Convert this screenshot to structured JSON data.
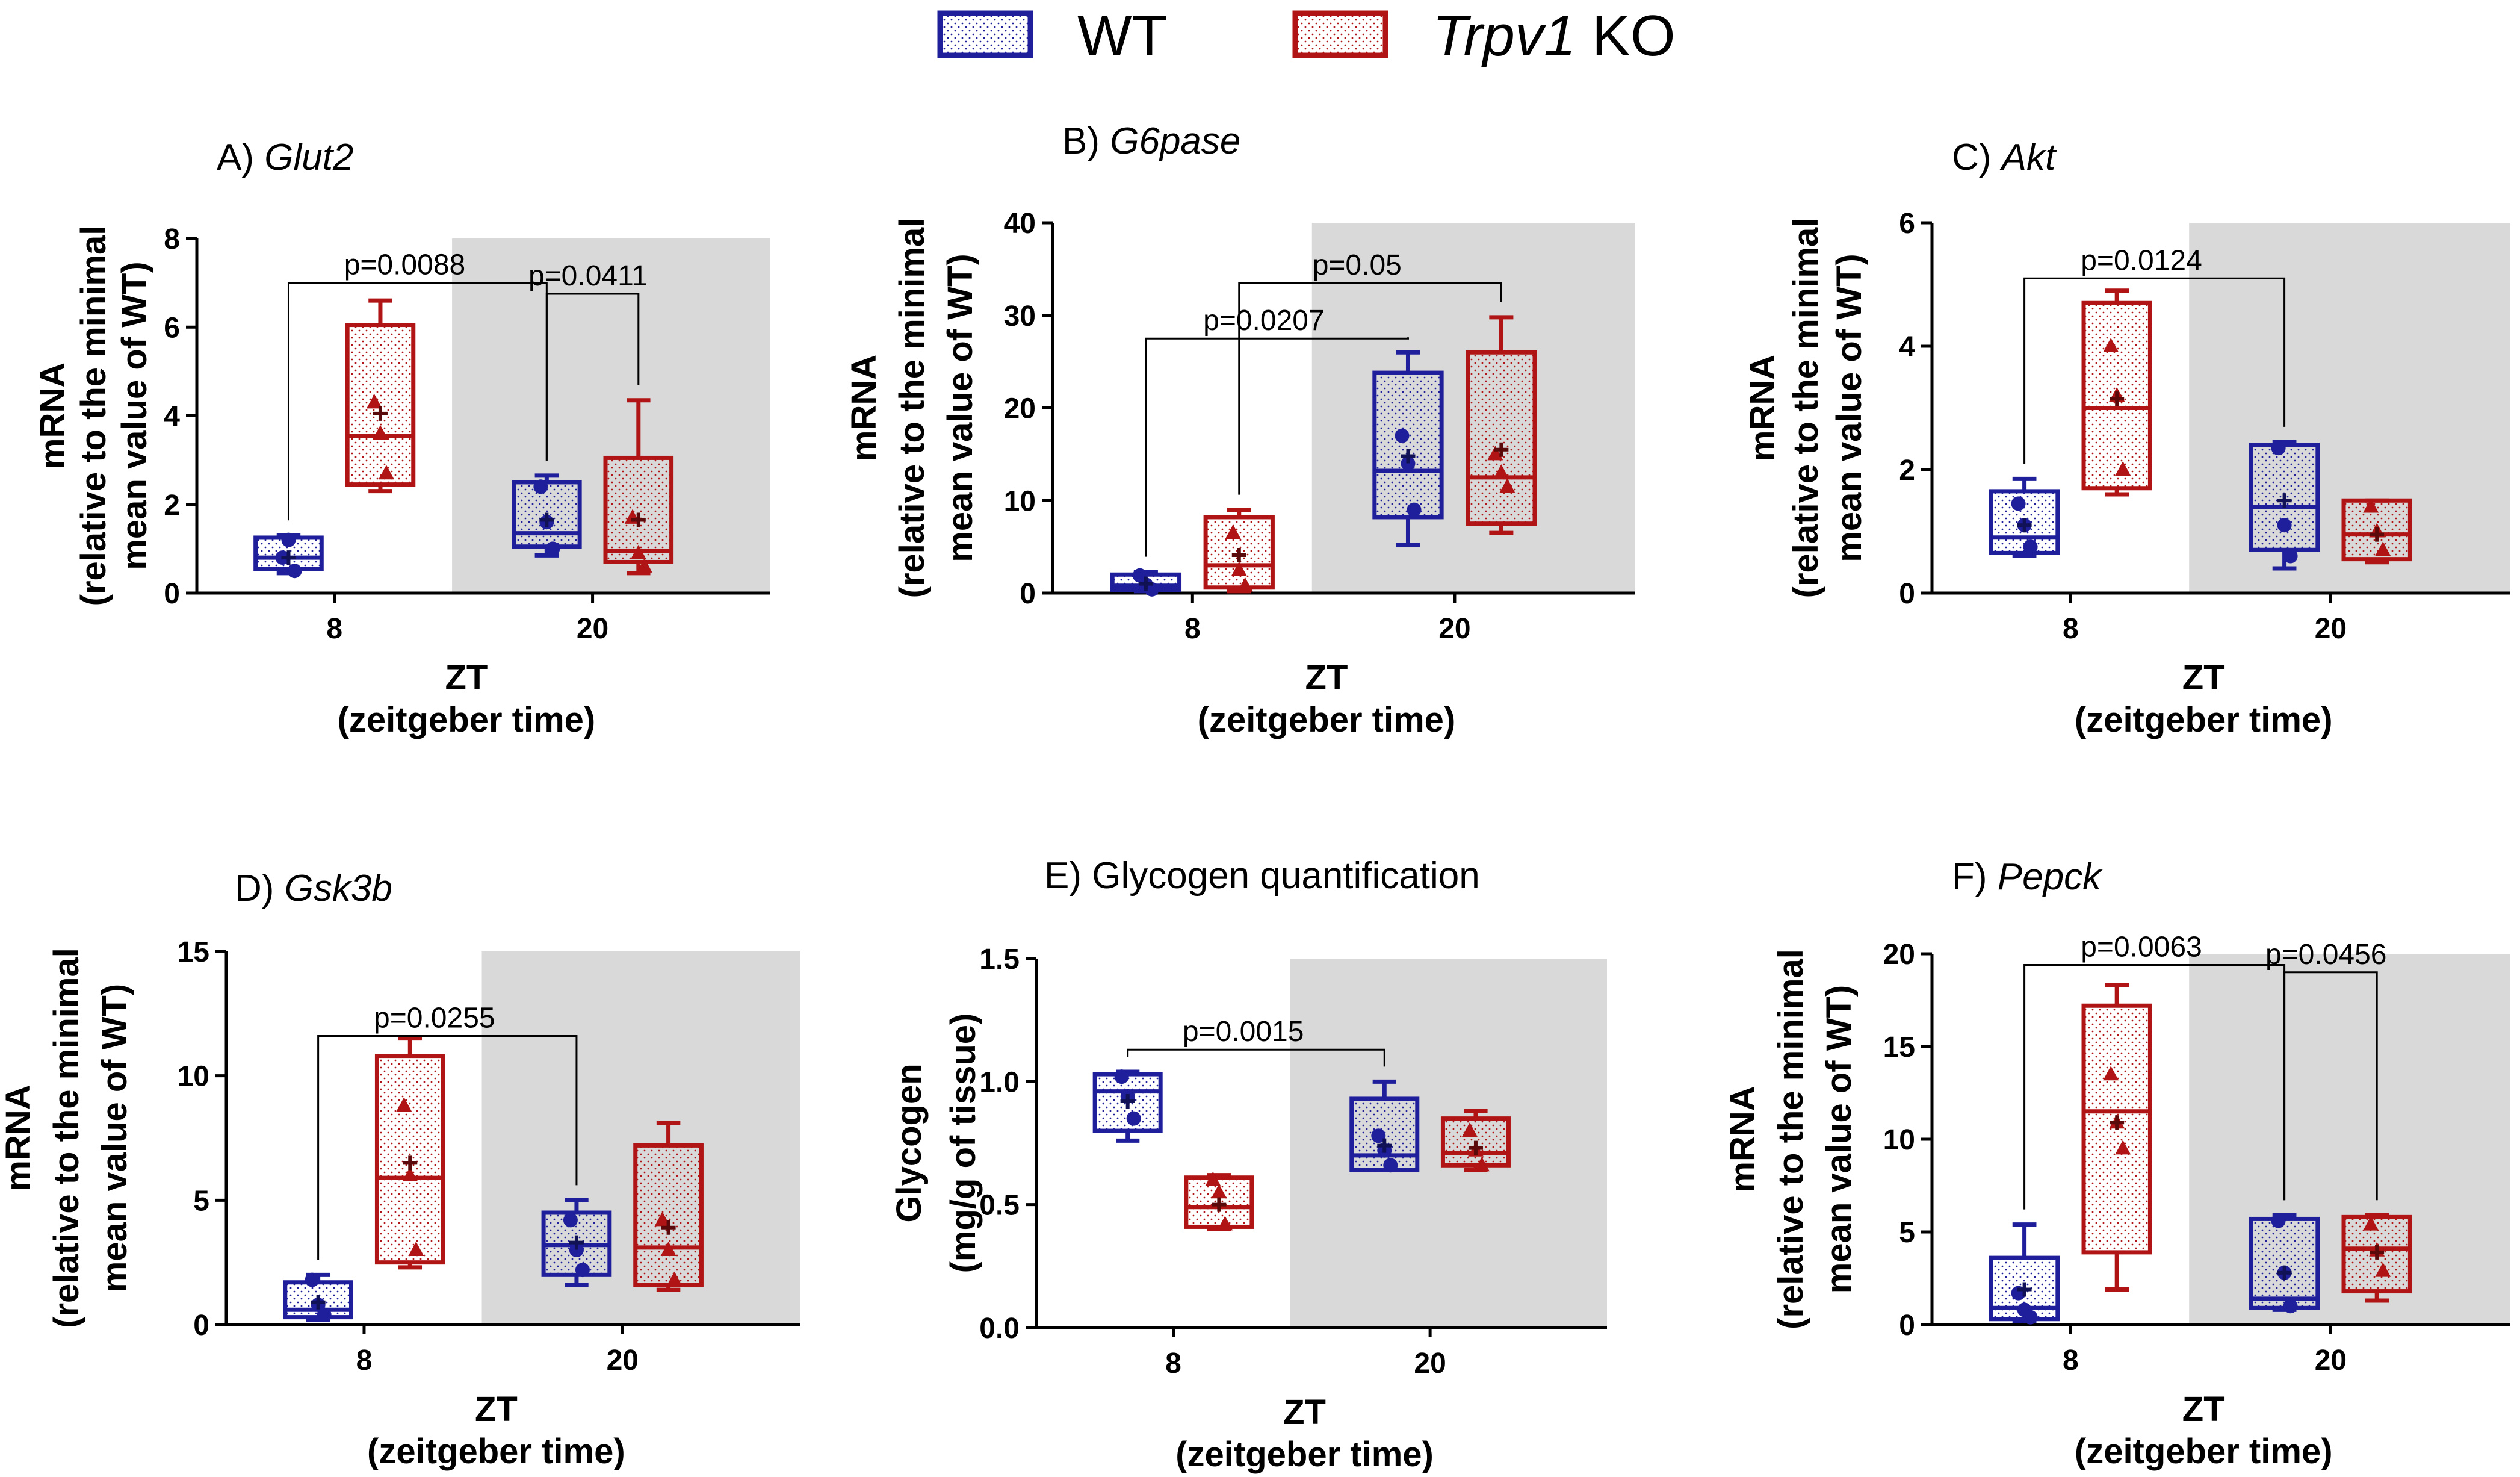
{
  "legend": {
    "wt": {
      "label": "WT",
      "color": "#1f1f9c"
    },
    "ko": {
      "gene": "Trpv1",
      "suffix": " KO",
      "color": "#b01414"
    }
  },
  "chart_data": [
    {
      "id": "A",
      "type": "box",
      "title_prefix": "A) ",
      "title_italic": "Glut2",
      "title_suffix": "",
      "ylabel": [
        "mRNA",
        "(relative to the minimal",
        "mean value of WT)"
      ],
      "xlabel": [
        "ZT",
        "(zeitgeber time)"
      ],
      "ylim": [
        0,
        8
      ],
      "yticks": [
        "0",
        "2",
        "4",
        "6",
        "8"
      ],
      "categories": [
        "8",
        "20"
      ],
      "shaded_category": "20",
      "series": [
        {
          "name": "WT",
          "boxes": [
            {
              "category": "8",
              "min": 0.45,
              "q1": 0.55,
              "median": 0.8,
              "q3": 1.25,
              "max": 1.3,
              "mean": 0.8,
              "points": [
                0.8,
                1.2,
                0.5
              ]
            },
            {
              "category": "20",
              "min": 0.85,
              "q1": 1.05,
              "median": 1.35,
              "q3": 2.5,
              "max": 2.65,
              "mean": 1.65,
              "points": [
                2.4,
                1.6,
                1.0
              ]
            }
          ]
        },
        {
          "name": "Trpv1 KO",
          "boxes": [
            {
              "category": "8",
              "min": 2.3,
              "q1": 2.45,
              "median": 3.55,
              "q3": 6.05,
              "max": 6.6,
              "mean": 4.05,
              "points": [
                4.3,
                3.6,
                2.7
              ]
            },
            {
              "category": "20",
              "min": 0.45,
              "q1": 0.7,
              "median": 0.95,
              "q3": 3.05,
              "max": 4.35,
              "mean": 1.65,
              "points": [
                1.7,
                0.9,
                0.6
              ]
            }
          ]
        }
      ],
      "annotations": [
        {
          "text": "p=0.0088",
          "from": [
            0,
            0
          ],
          "to": [
            1,
            0
          ],
          "level": 7.0
        },
        {
          "text": "p=0.0411",
          "from": [
            1,
            0
          ],
          "to": [
            1,
            1
          ],
          "level": 6.75
        }
      ]
    },
    {
      "id": "B",
      "type": "box",
      "title_prefix": "B) ",
      "title_italic": "G6pase",
      "title_suffix": "",
      "ylabel": [
        "mRNA",
        "(relative to the minimal",
        "mean value of WT)"
      ],
      "xlabel": [
        "ZT",
        "(zeitgeber time)"
      ],
      "ylim": [
        0,
        40
      ],
      "yticks": [
        "0",
        "10",
        "20",
        "30",
        "40"
      ],
      "categories": [
        "8",
        "20"
      ],
      "shaded_category": "20",
      "series": [
        {
          "name": "WT",
          "boxes": [
            {
              "category": "8",
              "min": 0.2,
              "q1": 0.3,
              "median": 0.8,
              "q3": 2.0,
              "max": 2.3,
              "mean": 1.0,
              "points": [
                1.9,
                0.9,
                0.4
              ]
            },
            {
              "category": "20",
              "min": 5.2,
              "q1": 8.2,
              "median": 13.2,
              "q3": 23.8,
              "max": 26.0,
              "mean": 14.8,
              "points": [
                17.0,
                14.0,
                9.0
              ]
            }
          ]
        },
        {
          "name": "Trpv1 KO",
          "boxes": [
            {
              "category": "8",
              "min": 0.2,
              "q1": 0.6,
              "median": 3.0,
              "q3": 8.2,
              "max": 9.0,
              "mean": 4.1,
              "points": [
                6.5,
                2.5,
                0.8
              ]
            },
            {
              "category": "20",
              "min": 6.5,
              "q1": 7.5,
              "median": 12.5,
              "q3": 26.0,
              "max": 29.8,
              "mean": 15.5,
              "points": [
                15.0,
                13.0,
                11.5
              ]
            }
          ]
        }
      ],
      "annotations": [
        {
          "text": "p=0.0207",
          "from": [
            0,
            0
          ],
          "to": [
            1,
            0
          ],
          "level": 27.5
        },
        {
          "text": "p=0.05",
          "from": [
            0,
            1
          ],
          "to": [
            1,
            1
          ],
          "level": 33.5
        }
      ]
    },
    {
      "id": "C",
      "type": "box",
      "title_prefix": "C) ",
      "title_italic": "Akt",
      "title_suffix": "",
      "ylabel": [
        "mRNA",
        "(relative to the minimal",
        "mean value of WT)"
      ],
      "xlabel": [
        "ZT",
        "(zeitgeber time)"
      ],
      "ylim": [
        0,
        6
      ],
      "yticks": [
        "0",
        "2",
        "4",
        "6"
      ],
      "categories": [
        "8",
        "20"
      ],
      "shaded_category": "20",
      "series": [
        {
          "name": "WT",
          "boxes": [
            {
              "category": "8",
              "min": 0.6,
              "q1": 0.65,
              "median": 0.9,
              "q3": 1.65,
              "max": 1.85,
              "mean": 1.1,
              "points": [
                1.45,
                1.1,
                0.75
              ]
            },
            {
              "category": "20",
              "min": 0.4,
              "q1": 0.7,
              "median": 1.4,
              "q3": 2.4,
              "max": 2.45,
              "mean": 1.5,
              "points": [
                2.35,
                1.1,
                0.6
              ]
            }
          ]
        },
        {
          "name": "Trpv1 KO",
          "boxes": [
            {
              "category": "8",
              "min": 1.6,
              "q1": 1.7,
              "median": 3.0,
              "q3": 4.7,
              "max": 4.9,
              "mean": 3.15,
              "points": [
                4.0,
                3.2,
                2.0
              ]
            },
            {
              "category": "20",
              "min": 0.5,
              "q1": 0.55,
              "median": 0.95,
              "q3": 1.5,
              "max": 1.5,
              "mean": 0.95,
              "points": [
                1.4,
                1.0,
                0.7
              ]
            }
          ]
        }
      ],
      "annotations": [
        {
          "text": "p=0.0124",
          "from": [
            0,
            0
          ],
          "to": [
            1,
            0
          ],
          "level": 5.1
        }
      ]
    },
    {
      "id": "D",
      "type": "box",
      "title_prefix": "D) ",
      "title_italic": "Gsk3b",
      "title_suffix": "",
      "ylabel": [
        "mRNA",
        "(relative to the minimal",
        "mean value of WT)"
      ],
      "xlabel": [
        "ZT",
        "(zeitgeber time)"
      ],
      "ylim": [
        0,
        15
      ],
      "yticks": [
        "0",
        "5",
        "10",
        "15"
      ],
      "categories": [
        "8",
        "20"
      ],
      "shaded_category": "20",
      "series": [
        {
          "name": "WT",
          "boxes": [
            {
              "category": "8",
              "min": 0.2,
              "q1": 0.3,
              "median": 0.6,
              "q3": 1.7,
              "max": 2.0,
              "mean": 0.9,
              "points": [
                1.8,
                0.8,
                0.4
              ]
            },
            {
              "category": "20",
              "min": 1.6,
              "q1": 2.0,
              "median": 3.2,
              "q3": 4.5,
              "max": 5.0,
              "mean": 3.3,
              "points": [
                4.2,
                3.0,
                2.2
              ]
            }
          ]
        },
        {
          "name": "Trpv1 KO",
          "boxes": [
            {
              "category": "8",
              "min": 2.3,
              "q1": 2.5,
              "median": 5.9,
              "q3": 10.8,
              "max": 11.5,
              "mean": 6.5,
              "points": [
                8.8,
                6.0,
                3.0
              ]
            },
            {
              "category": "20",
              "min": 1.4,
              "q1": 1.6,
              "median": 3.1,
              "q3": 7.2,
              "max": 8.1,
              "mean": 3.9,
              "points": [
                4.2,
                3.0,
                1.8
              ]
            }
          ]
        }
      ],
      "annotations": [
        {
          "text": "p=0.0255",
          "from": [
            0,
            0
          ],
          "to": [
            1,
            0
          ],
          "level": 11.6
        }
      ]
    },
    {
      "id": "E",
      "type": "box",
      "title_prefix": "E) ",
      "title_italic": "",
      "title_suffix": "Glycogen quantification",
      "ylabel": [
        "Glycogen",
        "(mg/g of tissue)"
      ],
      "xlabel": [
        "ZT",
        "(zeitgeber time)"
      ],
      "ylim": [
        0,
        1.5
      ],
      "yticks": [
        "0.0",
        "0.5",
        "1.0",
        "1.5"
      ],
      "categories": [
        "8",
        "20"
      ],
      "shaded_category": "20",
      "series": [
        {
          "name": "WT",
          "boxes": [
            {
              "category": "8",
              "min": 0.76,
              "q1": 0.8,
              "median": 0.96,
              "q3": 1.03,
              "max": 1.04,
              "mean": 0.92,
              "points": [
                1.02,
                0.94,
                0.85
              ]
            },
            {
              "category": "20",
              "min": 0.64,
              "q1": 0.64,
              "median": 0.7,
              "q3": 0.93,
              "max": 1.0,
              "mean": 0.74,
              "points": [
                0.78,
                0.72,
                0.66
              ]
            }
          ]
        },
        {
          "name": "Trpv1 KO",
          "boxes": [
            {
              "category": "8",
              "min": 0.4,
              "q1": 0.41,
              "median": 0.49,
              "q3": 0.61,
              "max": 0.62,
              "mean": 0.5,
              "points": [
                0.6,
                0.55,
                0.42
              ]
            },
            {
              "category": "20",
              "min": 0.64,
              "q1": 0.66,
              "median": 0.71,
              "q3": 0.85,
              "max": 0.88,
              "mean": 0.73,
              "points": [
                0.8,
                0.72,
                0.66
              ]
            }
          ]
        }
      ],
      "annotations": [
        {
          "text": "p=0.0015",
          "from": [
            0,
            0
          ],
          "to": [
            1,
            0
          ],
          "level": 1.13
        }
      ]
    },
    {
      "id": "F",
      "type": "box",
      "title_prefix": "F) ",
      "title_italic": "Pepck",
      "title_suffix": "",
      "ylabel": [
        "mRNA",
        "(relative to the minimal",
        "mean value of WT)"
      ],
      "xlabel": [
        "ZT",
        "(zeitgeber time)"
      ],
      "ylim": [
        0,
        20
      ],
      "yticks": [
        "0",
        "5",
        "10",
        "15",
        "20"
      ],
      "categories": [
        "8",
        "20"
      ],
      "shaded_category": "20",
      "series": [
        {
          "name": "WT",
          "boxes": [
            {
              "category": "8",
              "min": 0.2,
              "q1": 0.3,
              "median": 0.9,
              "q3": 3.6,
              "max": 5.4,
              "mean": 1.9,
              "points": [
                1.7,
                0.8,
                0.4
              ]
            },
            {
              "category": "20",
              "min": 0.8,
              "q1": 0.9,
              "median": 1.4,
              "q3": 5.7,
              "max": 5.9,
              "mean": 2.8,
              "points": [
                5.6,
                2.8,
                1.0
              ]
            }
          ]
        },
        {
          "name": "Trpv1 KO",
          "boxes": [
            {
              "category": "8",
              "min": 1.9,
              "q1": 3.9,
              "median": 11.5,
              "q3": 17.2,
              "max": 18.3,
              "mean": 10.9,
              "points": [
                13.5,
                10.9,
                9.5
              ]
            },
            {
              "category": "20",
              "min": 1.3,
              "q1": 1.8,
              "median": 4.1,
              "q3": 5.8,
              "max": 5.9,
              "mean": 3.9,
              "points": [
                5.4,
                4.0,
                2.9
              ]
            }
          ]
        }
      ],
      "annotations": [
        {
          "text": "p=0.0063",
          "from": [
            0,
            0
          ],
          "to": [
            1,
            0
          ],
          "level": 19.4
        },
        {
          "text": "p=0.0456",
          "from": [
            1,
            0
          ],
          "to": [
            1,
            1
          ],
          "level": 19.0
        }
      ]
    }
  ]
}
